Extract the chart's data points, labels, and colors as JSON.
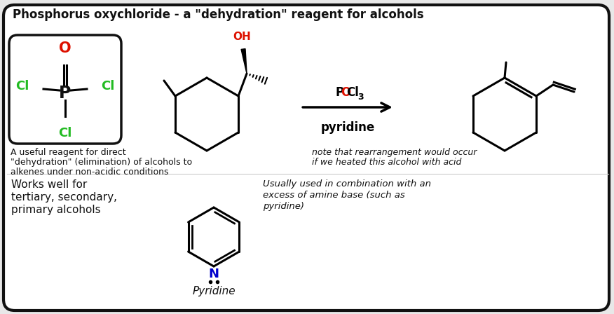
{
  "title": "Phosphorus oxychloride - a \"dehydration\" reagent for alcohols",
  "bg_color": "#e8e8e8",
  "border_color": "#111111",
  "text_color": "#111111",
  "green_color": "#22bb22",
  "red_color": "#dd1100",
  "blue_color": "#0000cc",
  "desc1_line1": "A useful reagent for direct",
  "desc1_line2": "\"dehydration\" (elimination) of alcohols to",
  "desc1_line3": "alkenes under non-acidic conditions",
  "desc2_line1": "note that rearrangement would occur",
  "desc2_line2": "if we heated this alcohol with acid",
  "desc3_line1": "Works well for",
  "desc3_line2": "tertiary, secondary,",
  "desc3_line3": "primary alcohols",
  "desc4_line1": "Usually used in combination with an",
  "desc4_line2": "excess of amine base (such as",
  "desc4_line3": "pyridine)",
  "pyridine_label": "Pyridine",
  "reagent_pyridine": "pyridine"
}
